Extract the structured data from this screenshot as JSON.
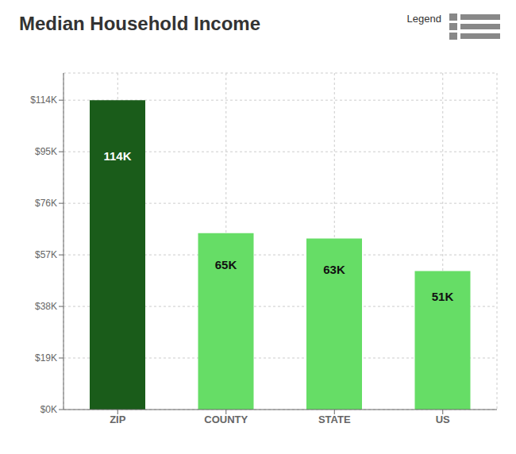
{
  "chart_data": {
    "type": "bar",
    "title": "Median Household Income",
    "annotations": [
      "Legend"
    ],
    "categories": [
      "ZIP",
      "COUNTY",
      "STATE",
      "US"
    ],
    "values": [
      114000,
      65000,
      63000,
      51000
    ],
    "value_labels": [
      "114K",
      "65K",
      "63K",
      "51K"
    ],
    "data_labels": true,
    "colors": [
      "#1a5c1a",
      "#66dd66",
      "#66dd66",
      "#66dd66"
    ],
    "ylim": [
      0,
      124000
    ],
    "yticks": [
      {
        "value": 0,
        "label": "$0K"
      },
      {
        "value": 19000,
        "label": "$19K"
      },
      {
        "value": 38000,
        "label": "$38K"
      },
      {
        "value": 57000,
        "label": "$57K"
      },
      {
        "value": 76000,
        "label": "$76K"
      },
      {
        "value": 95000,
        "label": "$95K"
      },
      {
        "value": 114000,
        "label": "$114K"
      }
    ],
    "grid": true
  }
}
